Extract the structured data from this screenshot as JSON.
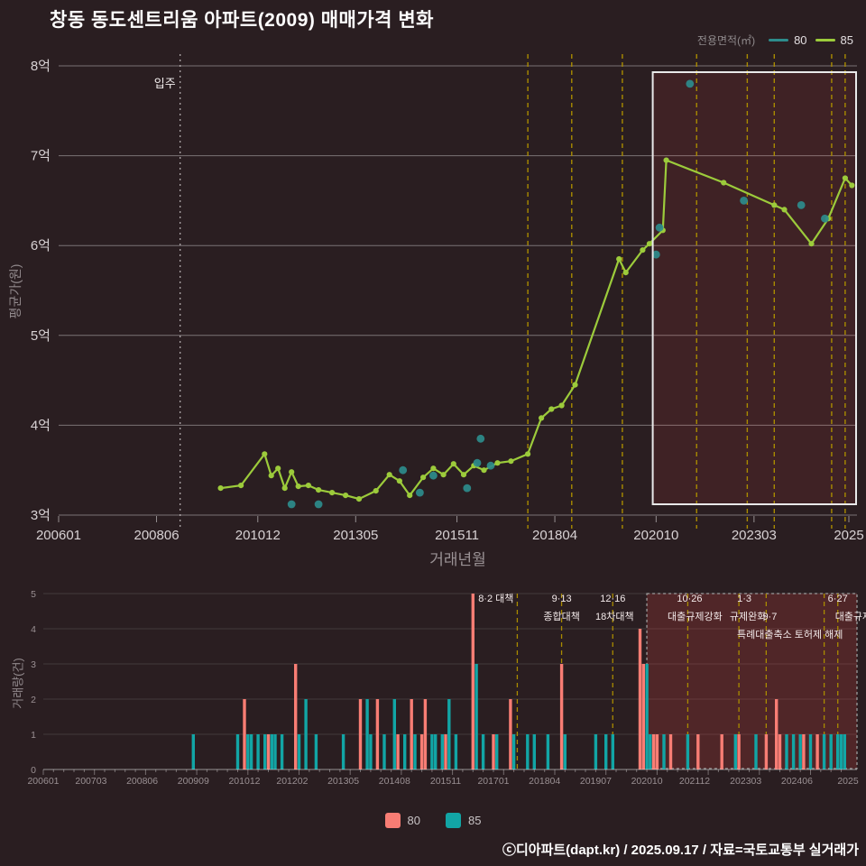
{
  "title": "창동 동도센트리움 아파트(2009) 매매가격 변화",
  "legend_top": {
    "title": "전용면적(㎡)",
    "items": [
      {
        "label": "80",
        "color": "#2d8c8c"
      },
      {
        "label": "85",
        "color": "#9ccb3b"
      }
    ]
  },
  "price_chart": {
    "ylabel": "평균가(원)",
    "xlabel": "거래년월",
    "unit": "억",
    "grid_color": "rgba(255,255,255,0.38)",
    "policy_line_color": "#a98b00",
    "yticks": [
      {
        "value": 3,
        "label": "3억"
      },
      {
        "value": 4,
        "label": "4억"
      },
      {
        "value": 5,
        "label": "5억"
      },
      {
        "value": 6,
        "label": "6억"
      },
      {
        "value": 7,
        "label": "7억"
      },
      {
        "value": 8,
        "label": "8억"
      }
    ],
    "xticks": [
      {
        "month": 200601,
        "label": "200601"
      },
      {
        "month": 200806,
        "label": "200806"
      },
      {
        "month": 201012,
        "label": "201012"
      },
      {
        "month": 201305,
        "label": "201305"
      },
      {
        "month": 201511,
        "label": "201511"
      },
      {
        "month": 201804,
        "label": "201804"
      },
      {
        "month": 202010,
        "label": "202010"
      },
      {
        "month": 202303,
        "label": "202303"
      },
      {
        "month": 202509,
        "label": "2025"
      }
    ],
    "move_in": {
      "month": 200901,
      "label": "입주"
    },
    "policy_lines": [
      201708,
      201809,
      201912,
      202110,
      202301,
      202309,
      202502,
      202506
    ],
    "highlight_box": {
      "from": 202009,
      "to": 202510
    }
  },
  "volume_chart": {
    "ylabel": "거래량(건)",
    "yticks": [
      0,
      1,
      2,
      3,
      4,
      5
    ],
    "xticks": [
      {
        "month": 200601,
        "label": "200601"
      },
      {
        "month": 200703,
        "label": "200703"
      },
      {
        "month": 200806,
        "label": "200806"
      },
      {
        "month": 200909,
        "label": "200909"
      },
      {
        "month": 201012,
        "label": "201012"
      },
      {
        "month": 201202,
        "label": "201202"
      },
      {
        "month": 201305,
        "label": "201305"
      },
      {
        "month": 201408,
        "label": "201408"
      },
      {
        "month": 201511,
        "label": "201511"
      },
      {
        "month": 201701,
        "label": "201701"
      },
      {
        "month": 201804,
        "label": "201804"
      },
      {
        "month": 201907,
        "label": "201907"
      },
      {
        "month": 202010,
        "label": "202010"
      },
      {
        "month": 202112,
        "label": "202112"
      },
      {
        "month": 202303,
        "label": "202303"
      },
      {
        "month": 202406,
        "label": "202406"
      },
      {
        "month": 202509,
        "label": "2025"
      }
    ],
    "highlight_box": {
      "from": 202010,
      "to": 202512
    },
    "annotations": [
      {
        "text": "8·2 대책",
        "month": 201708,
        "row": 1,
        "anchor": "end",
        "dx": -4
      },
      {
        "text": "9·13",
        "month": 201809,
        "row": 1,
        "anchor": "middle",
        "dx": 0
      },
      {
        "text": "종합대책",
        "month": 201809,
        "row": 2,
        "anchor": "middle",
        "dx": 0
      },
      {
        "text": "12·16",
        "month": 201912,
        "row": 1,
        "anchor": "middle",
        "dx": 0
      },
      {
        "text": "18차대책",
        "month": 201912,
        "row": 2,
        "anchor": "middle",
        "dx": 2
      },
      {
        "text": "10·26",
        "month": 202110,
        "row": 1,
        "anchor": "middle",
        "dx": 2
      },
      {
        "text": "대출규제강화",
        "month": 202110,
        "row": 2,
        "anchor": "middle",
        "dx": 8
      },
      {
        "text": "1·3",
        "month": 202301,
        "row": 1,
        "anchor": "middle",
        "dx": 6
      },
      {
        "text": "규제완화",
        "month": 202301,
        "row": 2,
        "anchor": "middle",
        "dx": 10
      },
      {
        "text": "9·7",
        "month": 202309,
        "row": 2,
        "anchor": "middle",
        "dx": 4
      },
      {
        "text": "특례대출축소",
        "month": 202309,
        "row": 3,
        "anchor": "middle",
        "dx": -2
      },
      {
        "text": "토허제 해제",
        "month": 202502,
        "row": 3,
        "anchor": "middle",
        "dx": -6
      },
      {
        "text": "6·27",
        "month": 202506,
        "row": 1,
        "anchor": "middle",
        "dx": 0
      },
      {
        "text": "대출규제",
        "month": 202506,
        "row": 2,
        "anchor": "start",
        "dx": -3
      }
    ]
  },
  "chart_data": [
    {
      "type": "line",
      "title": "창동 동도센트리움 아파트(2009) 매매가격 변화",
      "xlabel": "거래년월",
      "ylabel": "평균가(원)",
      "ylim_eok": [
        3,
        8
      ],
      "grid": true,
      "legend_position": "top-right",
      "series": [
        {
          "name": "85",
          "style": "line+markers",
          "color": "#9ccb3b",
          "points": [
            [
              201001,
              3.3
            ],
            [
              201007,
              3.33
            ],
            [
              201102,
              3.68
            ],
            [
              201104,
              3.44
            ],
            [
              201106,
              3.52
            ],
            [
              201108,
              3.3
            ],
            [
              201110,
              3.48
            ],
            [
              201112,
              3.32
            ],
            [
              201203,
              3.33
            ],
            [
              201206,
              3.28
            ],
            [
              201210,
              3.25
            ],
            [
              201302,
              3.22
            ],
            [
              201306,
              3.18
            ],
            [
              201311,
              3.27
            ],
            [
              201403,
              3.45
            ],
            [
              201406,
              3.38
            ],
            [
              201409,
              3.22
            ],
            [
              201501,
              3.42
            ],
            [
              201504,
              3.52
            ],
            [
              201507,
              3.45
            ],
            [
              201510,
              3.57
            ],
            [
              201601,
              3.45
            ],
            [
              201604,
              3.55
            ],
            [
              201607,
              3.5
            ],
            [
              201611,
              3.58
            ],
            [
              201703,
              3.6
            ],
            [
              201708,
              3.68
            ],
            [
              201712,
              4.08
            ],
            [
              201803,
              4.18
            ],
            [
              201806,
              4.22
            ],
            [
              201810,
              4.45
            ],
            [
              201911,
              5.85
            ],
            [
              202001,
              5.7
            ],
            [
              202006,
              5.95
            ],
            [
              202008,
              6.02
            ],
            [
              202012,
              6.17
            ],
            [
              202101,
              6.95
            ],
            [
              202206,
              6.7
            ],
            [
              202309,
              6.45
            ],
            [
              202312,
              6.4
            ],
            [
              202408,
              6.02
            ],
            [
              202501,
              6.3
            ],
            [
              202506,
              6.75
            ],
            [
              202508,
              6.67
            ]
          ]
        },
        {
          "name": "80",
          "style": "scatter",
          "color": "#2d8c8c",
          "points": [
            [
              201110,
              3.12
            ],
            [
              201206,
              3.12
            ],
            [
              201407,
              3.5
            ],
            [
              201412,
              3.25
            ],
            [
              201504,
              3.44
            ],
            [
              201602,
              3.3
            ],
            [
              201605,
              3.58
            ],
            [
              201606,
              3.85
            ],
            [
              201609,
              3.55
            ],
            [
              202010,
              5.9
            ],
            [
              202011,
              6.2
            ],
            [
              202108,
              7.8
            ],
            [
              202212,
              6.5
            ],
            [
              202405,
              6.45
            ],
            [
              202412,
              6.3
            ]
          ]
        }
      ]
    },
    {
      "type": "bar",
      "ylabel": "거래량(건)",
      "ylim": [
        0,
        5
      ],
      "series": [
        {
          "name": "80",
          "color": "#f87d74",
          "bars": [
            [
              201012,
              2
            ],
            [
              201107,
              1
            ],
            [
              201203,
              3
            ],
            [
              201310,
              2
            ],
            [
              201403,
              2
            ],
            [
              201409,
              1
            ],
            [
              201501,
              2
            ],
            [
              201504,
              1
            ],
            [
              201505,
              2
            ],
            [
              201511,
              1
            ],
            [
              201607,
              5
            ],
            [
              201701,
              1
            ],
            [
              201706,
              2
            ],
            [
              201809,
              3
            ],
            [
              202008,
              4
            ],
            [
              202009,
              3
            ],
            [
              202012,
              1
            ],
            [
              202101,
              1
            ],
            [
              202105,
              1
            ],
            [
              202201,
              1
            ],
            [
              202208,
              1
            ],
            [
              202301,
              1
            ],
            [
              202309,
              1
            ],
            [
              202312,
              2
            ],
            [
              202401,
              1
            ],
            [
              202408,
              1
            ],
            [
              202412,
              1
            ]
          ]
        },
        {
          "name": "85",
          "color": "#12a5a5",
          "bars": [
            [
              200909,
              1
            ],
            [
              201010,
              1
            ],
            [
              201101,
              1
            ],
            [
              201102,
              1
            ],
            [
              201104,
              1
            ],
            [
              201106,
              1
            ],
            [
              201108,
              1
            ],
            [
              201109,
              1
            ],
            [
              201111,
              1
            ],
            [
              201204,
              1
            ],
            [
              201206,
              2
            ],
            [
              201209,
              1
            ],
            [
              201305,
              1
            ],
            [
              201312,
              2
            ],
            [
              201401,
              1
            ],
            [
              201405,
              1
            ],
            [
              201408,
              2
            ],
            [
              201411,
              1
            ],
            [
              201502,
              1
            ],
            [
              201507,
              1
            ],
            [
              201508,
              1
            ],
            [
              201510,
              1
            ],
            [
              201512,
              2
            ],
            [
              201602,
              1
            ],
            [
              201608,
              3
            ],
            [
              201610,
              1
            ],
            [
              201702,
              1
            ],
            [
              201707,
              1
            ],
            [
              201711,
              1
            ],
            [
              201801,
              1
            ],
            [
              201805,
              1
            ],
            [
              201810,
              1
            ],
            [
              201907,
              1
            ],
            [
              201910,
              1
            ],
            [
              201912,
              1
            ],
            [
              202010,
              3
            ],
            [
              202011,
              1
            ],
            [
              202103,
              1
            ],
            [
              202110,
              1
            ],
            [
              202212,
              1
            ],
            [
              202306,
              1
            ],
            [
              202403,
              1
            ],
            [
              202405,
              1
            ],
            [
              202407,
              1
            ],
            [
              202410,
              1
            ],
            [
              202502,
              1
            ],
            [
              202504,
              1
            ],
            [
              202506,
              1
            ],
            [
              202507,
              1
            ],
            [
              202508,
              1
            ]
          ]
        }
      ]
    }
  ],
  "legend_bottom": {
    "items": [
      {
        "label": "80",
        "color": "#f87d74"
      },
      {
        "label": "85",
        "color": "#12a5a5"
      }
    ]
  },
  "footer": "ⓒ디아파트(dapt.kr) / 2025.09.17 / 자료=국토교통부 실거래가"
}
